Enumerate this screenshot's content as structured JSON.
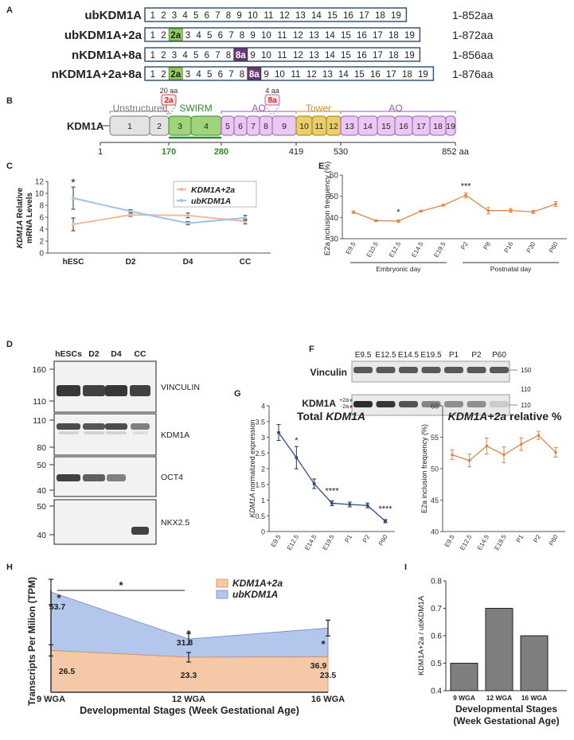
{
  "panels": {
    "A": "A",
    "B": "B",
    "C": "C",
    "D": "D",
    "E": "E",
    "F": "F",
    "G": "G",
    "H": "H",
    "I": "I"
  },
  "isoforms": {
    "rows": [
      {
        "name": "ubKDM1A",
        "exons": [
          "1",
          "2",
          "3",
          "4",
          "5",
          "6",
          "7",
          "8",
          "9",
          "10",
          "11",
          "12",
          "13",
          "14",
          "15",
          "16",
          "17",
          "18",
          "19"
        ],
        "range": "1-852aa",
        "extra2a": false,
        "extra8a": false
      },
      {
        "name": "ubKDM1A+2a",
        "exons": [
          "1",
          "2",
          "2a",
          "3",
          "4",
          "5",
          "6",
          "7",
          "8",
          "9",
          "10",
          "11",
          "12",
          "13",
          "14",
          "15",
          "16",
          "17",
          "18",
          "19"
        ],
        "range": "1-872aa",
        "extra2a": true,
        "extra8a": false
      },
      {
        "name": "nKDM1A+8a",
        "exons": [
          "1",
          "2",
          "3",
          "4",
          "5",
          "6",
          "7",
          "8",
          "8a",
          "9",
          "10",
          "11",
          "12",
          "13",
          "14",
          "15",
          "16",
          "17",
          "18",
          "19"
        ],
        "range": "1-856aa",
        "extra2a": false,
        "extra8a": true
      },
      {
        "name": "nKDM1A+2a+8a",
        "exons": [
          "1",
          "2",
          "2a",
          "3",
          "4",
          "5",
          "6",
          "7",
          "8",
          "8a",
          "9",
          "10",
          "11",
          "12",
          "13",
          "14",
          "15",
          "16",
          "17",
          "18",
          "19"
        ],
        "range": "1-876aa",
        "extra2a": true,
        "extra8a": true
      }
    ],
    "colors": {
      "exon2a": "#8fcf5a",
      "exon8a": "#6b3a78",
      "border": "#3a5570"
    }
  },
  "domain_map": {
    "protein": "KDM1A",
    "insert_2a": {
      "label": "2a",
      "size": "20 aa"
    },
    "insert_8a": {
      "label": "8a",
      "size": "4 aa"
    },
    "domains": [
      {
        "name": "Unstructured",
        "color": "#7b7b7b"
      },
      {
        "name": "SWIRM",
        "color": "#2e8b2e"
      },
      {
        "name": "AO",
        "color": "#9b59b6"
      },
      {
        "name": "Tower",
        "color": "#c8961e"
      },
      {
        "name": "AO",
        "color": "#9b59b6"
      }
    ],
    "exon_labels": [
      "1",
      "2",
      "3",
      "4",
      "5",
      "6",
      "7",
      "8",
      "9",
      "10",
      "11",
      "12",
      "13",
      "14",
      "15",
      "16",
      "17",
      "18",
      "19"
    ],
    "positions": [
      "1",
      "170",
      "280",
      "419",
      "530",
      "852 aa"
    ]
  },
  "panel_c": {
    "chart_data": {
      "type": "line",
      "categories": [
        "hESC",
        "D2",
        "D4",
        "CC"
      ],
      "series": [
        {
          "name": "KDM1A+2a",
          "values": [
            4.8,
            6.4,
            6.3,
            5.3
          ],
          "color": "#f4b89c"
        },
        {
          "name": "ubKDM1A",
          "values": [
            9.2,
            7.0,
            5.0,
            5.9
          ],
          "color": "#9ec3e6"
        }
      ],
      "ylabel_italic": "KDM1A",
      "ylabel_rest": "Relative",
      "ylabel_line2": "mRNA Levels",
      "ylim": [
        0,
        12
      ],
      "yticks": [
        "0",
        "2",
        "4",
        "6",
        "8",
        "10",
        "12"
      ],
      "annotation": "*"
    }
  },
  "panel_d": {
    "lanes": [
      "hESCs",
      "D2",
      "D4",
      "CC"
    ],
    "blots": [
      {
        "label": "VINCULIN",
        "ticks": [
          "160",
          "110"
        ]
      },
      {
        "label": "KDM1A",
        "ticks": [
          "110",
          "80"
        ]
      },
      {
        "label": "OCT4",
        "ticks": [
          "50",
          "40"
        ]
      },
      {
        "label": "NKX2.5",
        "ticks": [
          "50",
          "40"
        ]
      }
    ]
  },
  "panel_e": {
    "chart_data": {
      "type": "line",
      "categories": [
        "E9.5",
        "E10.5",
        "E12.5",
        "E14.5",
        "E19.5",
        "P2",
        "P8",
        "P16",
        "P30",
        "P60"
      ],
      "values": [
        42.5,
        38.5,
        38.3,
        43.0,
        45.8,
        50.5,
        43.2,
        43.3,
        42.6,
        46.3
      ],
      "ylabel": "E2a inclusion frequency (%)",
      "ylim": [
        30,
        60
      ],
      "yticks": [
        "30",
        "40",
        "50",
        "60"
      ],
      "annotations": [
        {
          "category": "E12.5",
          "text": "*"
        },
        {
          "category": "P2",
          "text": "***"
        }
      ],
      "groups": [
        "Embryonic day",
        "Postnatal day"
      ],
      "color": "#d9884a"
    }
  },
  "panel_f": {
    "lanes": [
      "E9.5",
      "E12.5",
      "E14.5",
      "E19.5",
      "P1",
      "P2",
      "P60"
    ],
    "vinculin_label": "Vinculin",
    "kdm_label": "KDM1A",
    "band_labels": [
      "+2a",
      "-2a"
    ],
    "ticks_top": [
      "150",
      "110"
    ],
    "ticks_bottom": [
      "110"
    ]
  },
  "panel_g": {
    "left": {
      "chart_data": {
        "type": "line",
        "title_pre": "Total",
        "title_italic": "KDM1A",
        "categories": [
          "E9.5",
          "E12.5",
          "E14.5",
          "E19.5",
          "P1",
          "P2",
          "P60"
        ],
        "values": [
          3.15,
          2.35,
          1.52,
          0.9,
          0.86,
          0.83,
          0.33
        ],
        "ylabel_italic": "KDM1A",
        "ylabel_rest": "normalized expression",
        "ylim": [
          0,
          4
        ],
        "yticks": [
          "0",
          "0.5",
          "1",
          "1.5",
          "2",
          "2.5",
          "3",
          "3.5",
          "4"
        ],
        "annotations": [
          {
            "category": "E12.5",
            "text": "*"
          },
          {
            "category": "E19.5",
            "text": "****"
          },
          {
            "category": "P60",
            "text": "****"
          }
        ],
        "color": "#2b4d8c"
      }
    },
    "right": {
      "chart_data": {
        "type": "line",
        "title_italic": "KDM1A+2a",
        "title_post": "relative %",
        "categories": [
          "E9.5",
          "E12.5",
          "E14.5",
          "E19.5",
          "P1",
          "P2",
          "P60"
        ],
        "values": [
          52.2,
          51.3,
          53.6,
          52.2,
          53.9,
          55.3,
          52.6
        ],
        "ylabel": "E2a inclusion frequency (%)",
        "ylim": [
          40,
          60
        ],
        "yticks": [
          "40",
          "45",
          "50",
          "55",
          "60"
        ],
        "color": "#d9884a"
      }
    }
  },
  "panel_h": {
    "chart_data": {
      "type": "area",
      "categories": [
        "9 WGA",
        "12 WGA",
        "16 WGA"
      ],
      "series": [
        {
          "name": "KDM1A+2a",
          "values": [
            26.5,
            23.3,
            23.5
          ],
          "color": "#f5c9a8"
        },
        {
          "name": "ubKDM1A",
          "values": [
            53.7,
            31.8,
            36.9
          ],
          "color": "#b3c6ec"
        }
      ],
      "value_labels_top": [
        "53.7",
        "31.8",
        "36.9"
      ],
      "value_labels_bottom": [
        "26.5",
        "23.3",
        "23.5"
      ],
      "ylabel": "Transcripts Per Milion (TPM)",
      "xlabel": "Developmental Stages (Week Gestational Age)",
      "annotations": [
        "*",
        "*",
        "*",
        "*"
      ]
    }
  },
  "panel_i": {
    "chart_data": {
      "type": "bar",
      "categories": [
        "9 WGA",
        "12 WGA",
        "16 WGA"
      ],
      "values": [
        0.5,
        0.7,
        0.6
      ],
      "ylabel": "KDM1A+2a / ubKDM1A",
      "xlabel_line1": "Developmental Stages",
      "xlabel_line2": "(Week Gestational Age)",
      "ylim": [
        0.4,
        0.8
      ],
      "yticks": [
        "0.4",
        "0.5",
        "0.6",
        "0.7",
        "0.8"
      ],
      "color": "#7f7f7f"
    }
  }
}
